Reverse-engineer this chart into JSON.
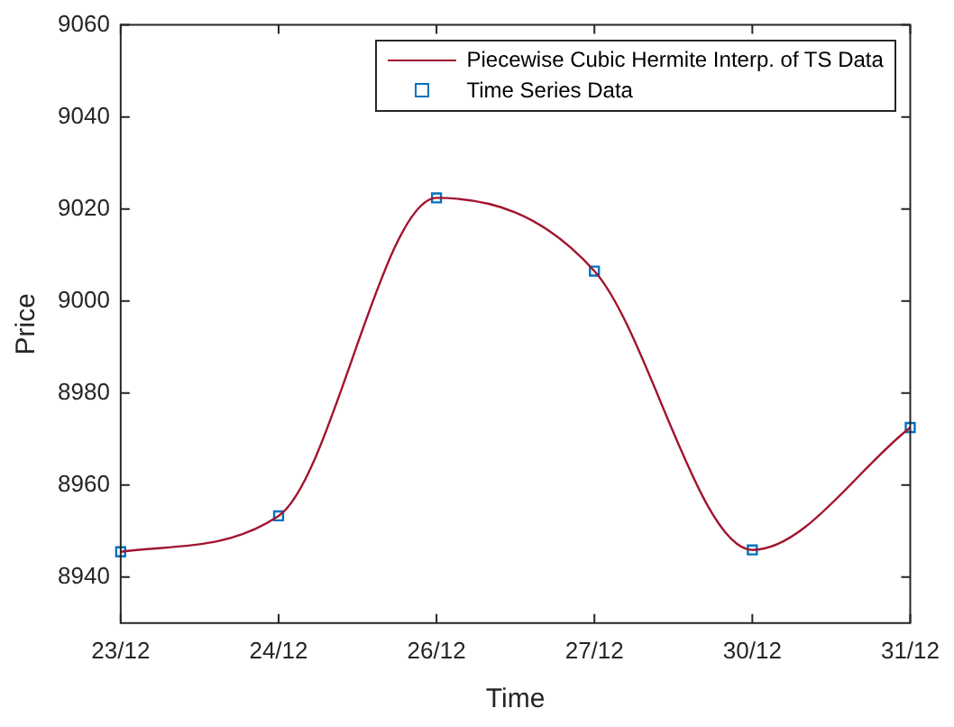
{
  "chart_data": {
    "type": "line",
    "xlabel": "Time",
    "ylabel": "Price",
    "categories": [
      "23/12",
      "24/12",
      "26/12",
      "27/12",
      "30/12",
      "31/12"
    ],
    "ylim": [
      8930,
      9060
    ],
    "yticks": [
      8940,
      8960,
      8980,
      9000,
      9020,
      9040,
      9060
    ],
    "grid": false,
    "legend": "top right",
    "series": [
      {
        "name": "Piecewise Cubic Hermite Interp. of TS Data",
        "type": "line",
        "color": "#a2142f",
        "marker": "none",
        "line_style": "solid",
        "values": [
          8945.5,
          8953.3,
          9022.4,
          9006.5,
          8945.9,
          8972.5
        ]
      },
      {
        "name": "Time Series Data",
        "type": "scatter",
        "color": "#0072bd",
        "marker": "square",
        "values": [
          8945.5,
          8953.3,
          9022.4,
          9006.5,
          8945.9,
          8972.5
        ]
      }
    ]
  }
}
